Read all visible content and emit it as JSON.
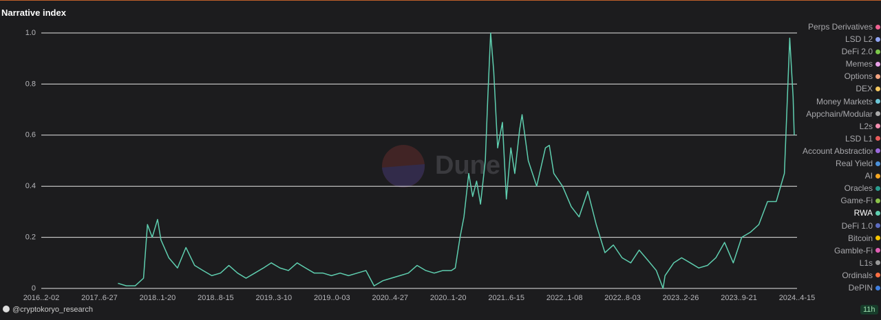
{
  "chart_data": {
    "type": "line",
    "title": "Narrative index",
    "watermark": "Dune",
    "credit": "@cryptokoryo_research",
    "timestamp": "11h",
    "xlim": [
      "2016-12-02",
      "2024-04-15"
    ],
    "xticks": [
      {
        "value": "2016-12-02",
        "label": "2016..2-02"
      },
      {
        "value": "2017-06-27",
        "label": "2017..6-27"
      },
      {
        "value": "2018-01-20",
        "label": "2018..1-20"
      },
      {
        "value": "2018-08-15",
        "label": "2018..8-15"
      },
      {
        "value": "2019-03-10",
        "label": "2019..3-10"
      },
      {
        "value": "2019-10-03",
        "label": "2019..0-03"
      },
      {
        "value": "2020-04-27",
        "label": "2020..4-27"
      },
      {
        "value": "2020-11-20",
        "label": "2020..1-20"
      },
      {
        "value": "2021-06-15",
        "label": "2021..6-15"
      },
      {
        "value": "2022-01-08",
        "label": "2022..1-08"
      },
      {
        "value": "2022-08-03",
        "label": "2022..8-03"
      },
      {
        "value": "2023-02-26",
        "label": "2023..2-26"
      },
      {
        "value": "2023-09-21",
        "label": "2023..9-21"
      },
      {
        "value": "2024-04-15",
        "label": "2024..4-15"
      }
    ],
    "ylim": [
      0,
      1
    ],
    "yticks": [
      0,
      0.2,
      0.4,
      0.6,
      0.8,
      {
        "value": 1,
        "label": "1.0"
      }
    ],
    "grid": true,
    "x": [
      "2017-09-01",
      "2017-10-01",
      "2017-11-01",
      "2017-12-01",
      "2017-12-15",
      "2018-01-01",
      "2018-01-20",
      "2018-02-01",
      "2018-03-01",
      "2018-04-01",
      "2018-05-01",
      "2018-06-01",
      "2018-07-01",
      "2018-08-01",
      "2018-09-01",
      "2018-10-01",
      "2018-11-01",
      "2018-12-01",
      "2019-01-01",
      "2019-02-01",
      "2019-03-01",
      "2019-04-01",
      "2019-05-01",
      "2019-06-01",
      "2019-07-01",
      "2019-08-01",
      "2019-09-01",
      "2019-10-01",
      "2019-11-01",
      "2019-12-01",
      "2020-01-01",
      "2020-02-01",
      "2020-03-01",
      "2020-04-01",
      "2020-05-01",
      "2020-06-01",
      "2020-07-01",
      "2020-08-01",
      "2020-09-01",
      "2020-10-01",
      "2020-11-01",
      "2020-12-01",
      "2020-12-15",
      "2021-01-01",
      "2021-01-15",
      "2021-02-01",
      "2021-02-15",
      "2021-03-01",
      "2021-03-15",
      "2021-04-01",
      "2021-04-10",
      "2021-04-20",
      "2021-05-01",
      "2021-05-15",
      "2021-06-01",
      "2021-06-15",
      "2021-07-01",
      "2021-07-15",
      "2021-08-01",
      "2021-08-10",
      "2021-09-01",
      "2021-10-01",
      "2021-11-01",
      "2021-11-15",
      "2021-12-01",
      "2022-01-01",
      "2022-02-01",
      "2022-03-01",
      "2022-04-01",
      "2022-05-01",
      "2022-06-01",
      "2022-07-01",
      "2022-08-01",
      "2022-09-01",
      "2022-10-01",
      "2022-11-01",
      "2022-12-01",
      "2022-12-25",
      "2023-01-01",
      "2023-02-01",
      "2023-03-01",
      "2023-04-01",
      "2023-05-01",
      "2023-06-01",
      "2023-07-01",
      "2023-08-01",
      "2023-09-01",
      "2023-10-01",
      "2023-11-01",
      "2023-12-01",
      "2024-01-01",
      "2024-02-01",
      "2024-03-01",
      "2024-03-20",
      "2024-04-01",
      "2024-04-05"
    ],
    "series": [
      {
        "name": "Perps Derivatives",
        "color": "#f06292",
        "hidden": true
      },
      {
        "name": "LSD L2",
        "color": "#90a4f4",
        "hidden": true
      },
      {
        "name": "DeFi 2.0",
        "color": "#7cc84a",
        "hidden": true
      },
      {
        "name": "Memes",
        "color": "#e8a0e8",
        "hidden": true
      },
      {
        "name": "Options",
        "color": "#f4a582",
        "hidden": true
      },
      {
        "name": "DEX",
        "color": "#f6c85f",
        "hidden": true
      },
      {
        "name": "Money Markets",
        "color": "#6dc8d8",
        "hidden": true
      },
      {
        "name": "Appchain/Modular",
        "color": "#aaaaaa",
        "hidden": true
      },
      {
        "name": "L2s",
        "color": "#f48fb1",
        "hidden": true
      },
      {
        "name": "LSD L1",
        "color": "#e85a5a",
        "hidden": true
      },
      {
        "name": "Account Abstraction",
        "color": "#9c6ade",
        "hidden": true
      },
      {
        "name": "Real Yield",
        "color": "#4a90d9",
        "hidden": true
      },
      {
        "name": "AI",
        "color": "#f5a623",
        "hidden": true
      },
      {
        "name": "Oracles",
        "color": "#2a9d8f",
        "hidden": true
      },
      {
        "name": "Game-Fi",
        "color": "#8bc34a",
        "hidden": true
      },
      {
        "name": "RWA",
        "color": "#5fcfb0",
        "values": [
          0.02,
          0.01,
          0.01,
          0.04,
          0.25,
          0.2,
          0.27,
          0.19,
          0.12,
          0.08,
          0.16,
          0.09,
          0.07,
          0.05,
          0.06,
          0.09,
          0.06,
          0.04,
          0.06,
          0.08,
          0.1,
          0.08,
          0.07,
          0.1,
          0.08,
          0.06,
          0.06,
          0.05,
          0.06,
          0.05,
          0.06,
          0.07,
          0.01,
          0.03,
          0.04,
          0.05,
          0.06,
          0.09,
          0.07,
          0.06,
          0.07,
          0.07,
          0.08,
          0.2,
          0.28,
          0.45,
          0.36,
          0.42,
          0.33,
          0.5,
          0.75,
          1.0,
          0.85,
          0.55,
          0.65,
          0.35,
          0.55,
          0.45,
          0.62,
          0.68,
          0.5,
          0.4,
          0.55,
          0.56,
          0.45,
          0.4,
          0.32,
          0.28,
          0.38,
          0.25,
          0.14,
          0.17,
          0.12,
          0.1,
          0.15,
          0.11,
          0.07,
          0.0,
          0.05,
          0.1,
          0.12,
          0.1,
          0.08,
          0.09,
          0.12,
          0.18,
          0.1,
          0.2,
          0.22,
          0.25,
          0.34,
          0.34,
          0.45,
          0.98,
          0.75,
          0.6
        ]
      },
      {
        "name": "DeFi 1.0",
        "color": "#5c6bc0",
        "hidden": true
      },
      {
        "name": "Bitcoin",
        "color": "#f5c400",
        "hidden": true
      },
      {
        "name": "Gamble-Fi",
        "color": "#e05fb5",
        "hidden": true
      },
      {
        "name": "L1s",
        "color": "#999999",
        "hidden": true
      },
      {
        "name": "Ordinals",
        "color": "#ff7043",
        "hidden": true
      },
      {
        "name": "DePIN",
        "color": "#3f7fe0",
        "hidden": true
      }
    ]
  }
}
